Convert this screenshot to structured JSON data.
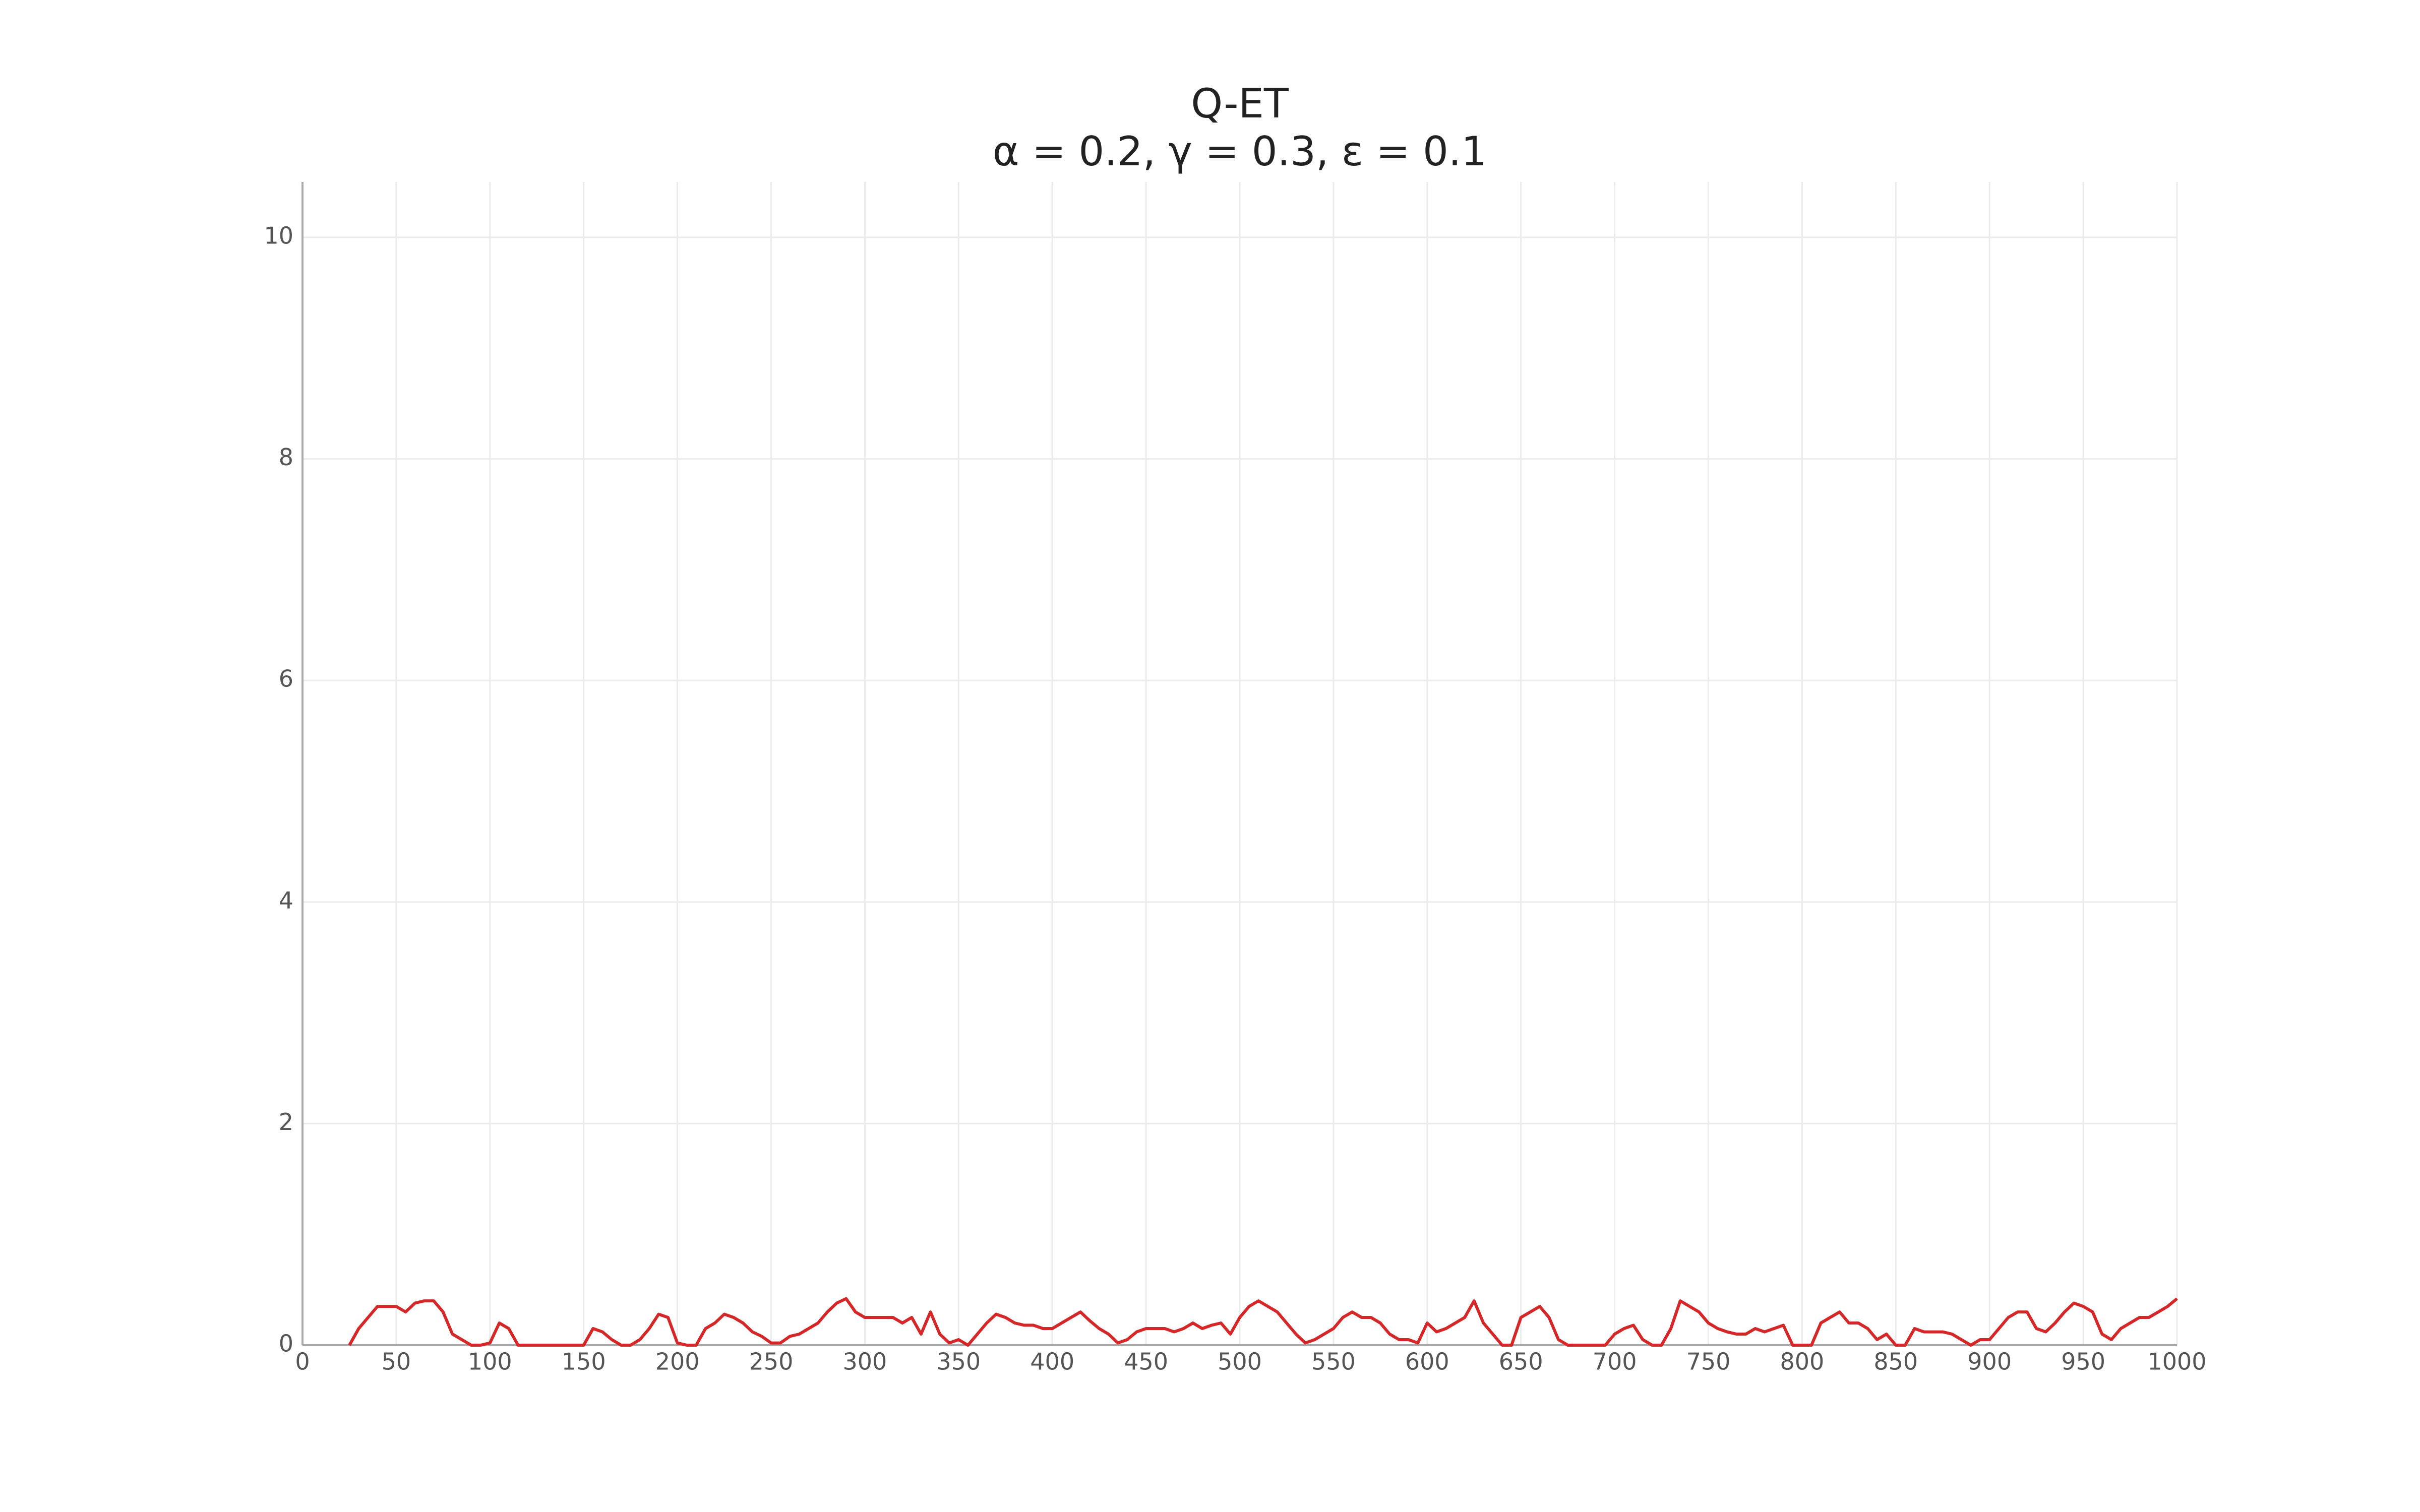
{
  "chart_data": {
    "type": "line",
    "title": "Q-ET",
    "subtitle": "α = 0.2, γ = 0.3, ε = 0.1",
    "x": [
      0,
      5,
      10,
      15,
      20,
      25,
      30,
      35,
      40,
      45,
      50,
      55,
      60,
      65,
      70,
      75,
      80,
      85,
      90,
      95,
      100,
      105,
      110,
      115,
      120,
      125,
      130,
      135,
      140,
      145,
      150,
      155,
      160,
      165,
      170,
      175,
      180,
      185,
      190,
      195,
      200,
      205,
      210,
      215,
      220,
      225,
      230,
      235,
      240,
      245,
      250,
      255,
      260,
      265,
      270,
      275,
      280,
      285,
      290,
      295,
      300,
      305,
      310,
      315,
      320,
      325,
      330,
      335,
      340,
      345,
      350,
      355,
      360,
      365,
      370,
      375,
      380,
      385,
      390,
      395,
      400,
      405,
      410,
      415,
      420,
      425,
      430,
      435,
      440,
      445,
      450,
      455,
      460,
      465,
      470,
      475,
      480,
      485,
      490,
      495,
      500,
      505,
      510,
      515,
      520,
      525,
      530,
      535,
      540,
      545,
      550,
      555,
      560,
      565,
      570,
      575,
      580,
      585,
      590,
      595,
      600,
      605,
      610,
      615,
      620,
      625,
      630,
      635,
      640,
      645,
      650,
      655,
      660,
      665,
      670,
      675,
      680,
      685,
      690,
      695,
      700,
      705,
      710,
      715,
      720,
      725,
      730,
      735,
      740,
      745,
      750,
      755,
      760,
      765,
      770,
      775,
      780,
      785,
      790,
      795,
      800,
      805,
      810,
      815,
      820,
      825,
      830,
      835,
      840,
      845,
      850,
      855,
      860,
      865,
      870,
      875,
      880,
      885,
      890,
      895,
      900,
      905,
      910,
      915,
      920,
      925,
      930,
      935,
      940,
      945,
      950,
      955,
      960,
      965,
      970,
      975,
      980,
      985,
      990,
      995,
      1000
    ],
    "values": [
      null,
      null,
      null,
      null,
      null,
      0,
      0.15,
      0.25,
      0.35,
      0.35,
      0.35,
      0.3,
      0.38,
      0.4,
      0.4,
      0.3,
      0.1,
      0.05,
      0,
      0,
      0.02,
      0.2,
      0.15,
      0,
      0,
      0,
      0,
      0,
      0,
      0,
      0,
      0.15,
      0.12,
      0.05,
      0,
      0,
      0.05,
      0.15,
      0.28,
      0.25,
      0.02,
      0,
      0,
      0.15,
      0.2,
      0.28,
      0.25,
      0.2,
      0.12,
      0.08,
      0.02,
      0.02,
      0.08,
      0.1,
      0.15,
      0.2,
      0.3,
      0.38,
      0.42,
      0.3,
      0.25,
      0.25,
      0.25,
      0.25,
      0.2,
      0.25,
      0.1,
      0.3,
      0.1,
      0.02,
      0.05,
      0,
      0.1,
      0.2,
      0.28,
      0.25,
      0.2,
      0.18,
      0.18,
      0.15,
      0.15,
      0.2,
      0.25,
      0.3,
      0.22,
      0.15,
      0.1,
      0.02,
      0.05,
      0.12,
      0.15,
      0.15,
      0.15,
      0.12,
      0.15,
      0.2,
      0.15,
      0.18,
      0.2,
      0.1,
      0.25,
      0.35,
      0.4,
      0.35,
      0.3,
      0.2,
      0.1,
      0.02,
      0.05,
      0.1,
      0.15,
      0.25,
      0.3,
      0.25,
      0.25,
      0.2,
      0.1,
      0.05,
      0.05,
      0.02,
      0.2,
      0.12,
      0.15,
      0.2,
      0.25,
      0.4,
      0.2,
      0.1,
      0,
      0,
      0.25,
      0.3,
      0.35,
      0.25,
      0.05,
      0,
      0,
      0,
      0,
      0,
      0.1,
      0.15,
      0.18,
      0.05,
      0,
      0,
      0.15,
      0.4,
      0.35,
      0.3,
      0.2,
      0.15,
      0.12,
      0.1,
      0.1,
      0.15,
      0.12,
      0.15,
      0.18,
      0,
      0,
      0,
      0.2,
      0.25,
      0.3,
      0.2,
      0.2,
      0.15,
      0.05,
      0.1,
      0,
      0,
      0.15,
      0.12,
      0.12,
      0.12,
      0.1,
      0.05,
      0,
      0.05,
      0.05,
      0.15,
      0.25,
      0.3,
      0.3,
      0.15,
      0.12,
      0.2,
      0.3,
      0.38,
      0.35,
      0.3,
      0.1,
      0.05,
      0.15,
      0.2,
      0.25,
      0.25,
      0.3,
      0.35,
      0.42
    ],
    "color": "#d62728",
    "xlim": [
      0,
      1000
    ],
    "xticks": [
      0,
      50,
      100,
      150,
      200,
      250,
      300,
      350,
      400,
      450,
      500,
      550,
      600,
      650,
      700,
      750,
      800,
      850,
      900,
      950,
      1000
    ],
    "ylim": [
      0,
      10.5
    ],
    "yticks": [
      0,
      2,
      4,
      6,
      8,
      10
    ],
    "grid": true
  }
}
